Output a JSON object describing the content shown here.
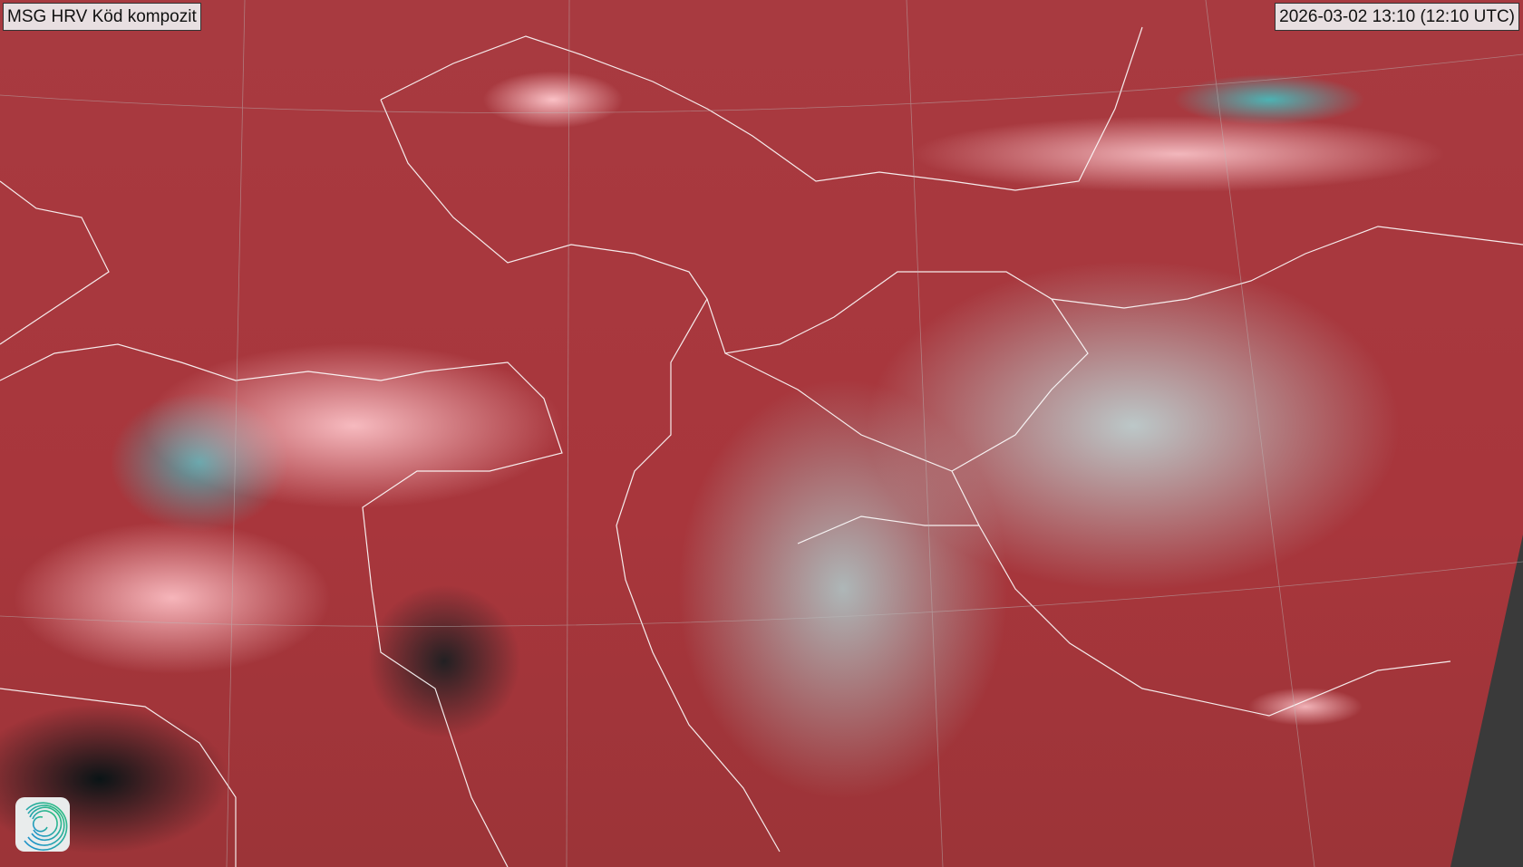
{
  "title": "MSG HRV Köd kompozit",
  "timestamp": "2026-03-02 13:10 (12:10 UTC)",
  "logo_icon": "swirl-logo-icon",
  "colors": {
    "land": "#a8363c",
    "low_cloud": "#ffc8cd",
    "high_cloud": "#bcd6d6",
    "snow": "#3cc8c8",
    "no_data": "#3a3a3a"
  }
}
